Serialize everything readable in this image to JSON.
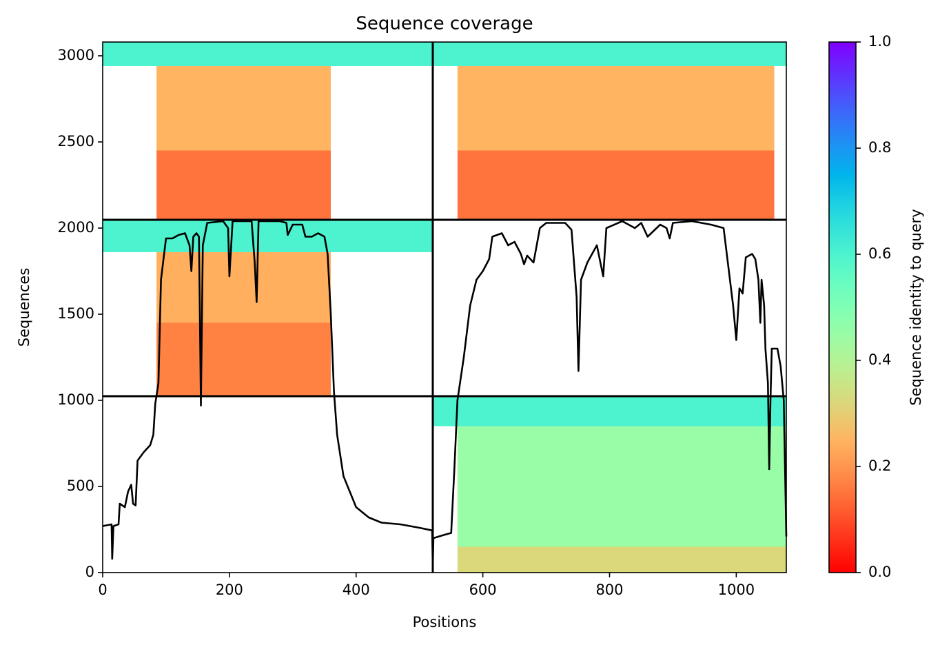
{
  "chart_data": {
    "type": "coverage",
    "title": "Sequence coverage",
    "xlabel": "Positions",
    "ylabel": "Sequences",
    "xlim": [
      0,
      1079
    ],
    "ylim": [
      0,
      3080
    ],
    "xticks": [
      0,
      200,
      400,
      600,
      800,
      1000
    ],
    "yticks": [
      0,
      500,
      1000,
      1500,
      2000,
      2500,
      3000
    ],
    "colorbar": {
      "label": "Sequence identity to query",
      "clim": [
        0,
        1
      ],
      "ticks": [
        {
          "value": 0,
          "label": "0.0"
        },
        0.2,
        0.4,
        0.6,
        0.8,
        {
          "value": 1,
          "label": "1.0"
        }
      ]
    },
    "dividers": {
      "x": [
        521
      ],
      "y": [
        1024,
        2048
      ]
    },
    "blocks": [
      {
        "x": [
          0,
          521
        ],
        "y": [
          2940,
          3080
        ],
        "identity": 0.6
      },
      {
        "x": [
          85,
          360
        ],
        "y": [
          2450,
          2940
        ],
        "identity": 0.25
      },
      {
        "x": [
          85,
          360
        ],
        "y": [
          2050,
          2450
        ],
        "identity": 0.15
      },
      {
        "x": [
          521,
          1079
        ],
        "y": [
          2940,
          3080
        ],
        "identity": 0.6
      },
      {
        "x": [
          560,
          1060
        ],
        "y": [
          2450,
          2940
        ],
        "identity": 0.25
      },
      {
        "x": [
          560,
          1060
        ],
        "y": [
          2050,
          2450
        ],
        "identity": 0.15
      },
      {
        "x": [
          0,
          521
        ],
        "y": [
          1860,
          2048
        ],
        "identity": 0.6
      },
      {
        "x": [
          85,
          360
        ],
        "y": [
          1450,
          1860
        ],
        "identity": 0.24
      },
      {
        "x": [
          85,
          360
        ],
        "y": [
          1024,
          1450
        ],
        "identity": 0.17
      },
      {
        "x": [
          521,
          1079
        ],
        "y": [
          850,
          1024
        ],
        "identity": 0.6
      },
      {
        "x": [
          560,
          1079
        ],
        "y": [
          150,
          850
        ],
        "identity": 0.45
      },
      {
        "x": [
          560,
          1079
        ],
        "y": [
          0,
          150
        ],
        "identity": 0.32
      }
    ],
    "line_color": "#000000",
    "coverage": {
      "x": [
        0,
        14,
        15,
        17,
        25,
        27,
        35,
        40,
        45,
        48,
        52,
        55,
        65,
        75,
        80,
        83,
        88,
        92,
        100,
        110,
        120,
        130,
        137,
        140,
        143,
        148,
        152,
        154,
        155,
        158,
        165,
        190,
        198,
        200,
        205,
        235,
        240,
        243,
        246,
        280,
        290,
        292,
        300,
        315,
        320,
        330,
        340,
        350,
        355,
        360,
        365,
        370,
        380,
        400,
        420,
        440,
        470,
        500,
        520,
        521,
        522,
        540,
        550,
        555,
        560,
        570,
        580,
        590,
        600,
        610,
        615,
        630,
        640,
        650,
        660,
        665,
        670,
        680,
        690,
        700,
        730,
        740,
        748,
        751,
        755,
        765,
        780,
        790,
        795,
        820,
        840,
        850,
        860,
        880,
        890,
        895,
        900,
        930,
        960,
        980,
        990,
        995,
        1000,
        1005,
        1010,
        1015,
        1025,
        1030,
        1035,
        1038,
        1040,
        1044,
        1046,
        1050,
        1052,
        1054,
        1056,
        1065,
        1070,
        1075,
        1079
      ],
      "y": [
        270,
        280,
        80,
        270,
        280,
        400,
        380,
        470,
        510,
        400,
        390,
        650,
        700,
        740,
        800,
        980,
        1100,
        1700,
        1940,
        1940,
        1960,
        1970,
        1900,
        1750,
        1950,
        1970,
        1950,
        1300,
        970,
        1900,
        2030,
        2040,
        2000,
        1720,
        2040,
        2040,
        1800,
        1570,
        2040,
        2040,
        2030,
        1960,
        2020,
        2020,
        1950,
        1950,
        1970,
        1950,
        1850,
        1500,
        1050,
        800,
        560,
        380,
        320,
        290,
        280,
        260,
        245,
        30,
        200,
        220,
        230,
        600,
        1000,
        1250,
        1550,
        1700,
        1750,
        1820,
        1950,
        1970,
        1900,
        1920,
        1850,
        1790,
        1840,
        1800,
        2000,
        2030,
        2030,
        1990,
        1600,
        1170,
        1700,
        1800,
        1900,
        1720,
        2000,
        2040,
        2000,
        2030,
        1950,
        2020,
        2000,
        1940,
        2030,
        2040,
        2020,
        2000,
        1700,
        1550,
        1350,
        1650,
        1620,
        1830,
        1850,
        1820,
        1700,
        1450,
        1700,
        1550,
        1300,
        1100,
        600,
        1000,
        1300,
        1300,
        1200,
        1000,
        210
      ]
    }
  }
}
